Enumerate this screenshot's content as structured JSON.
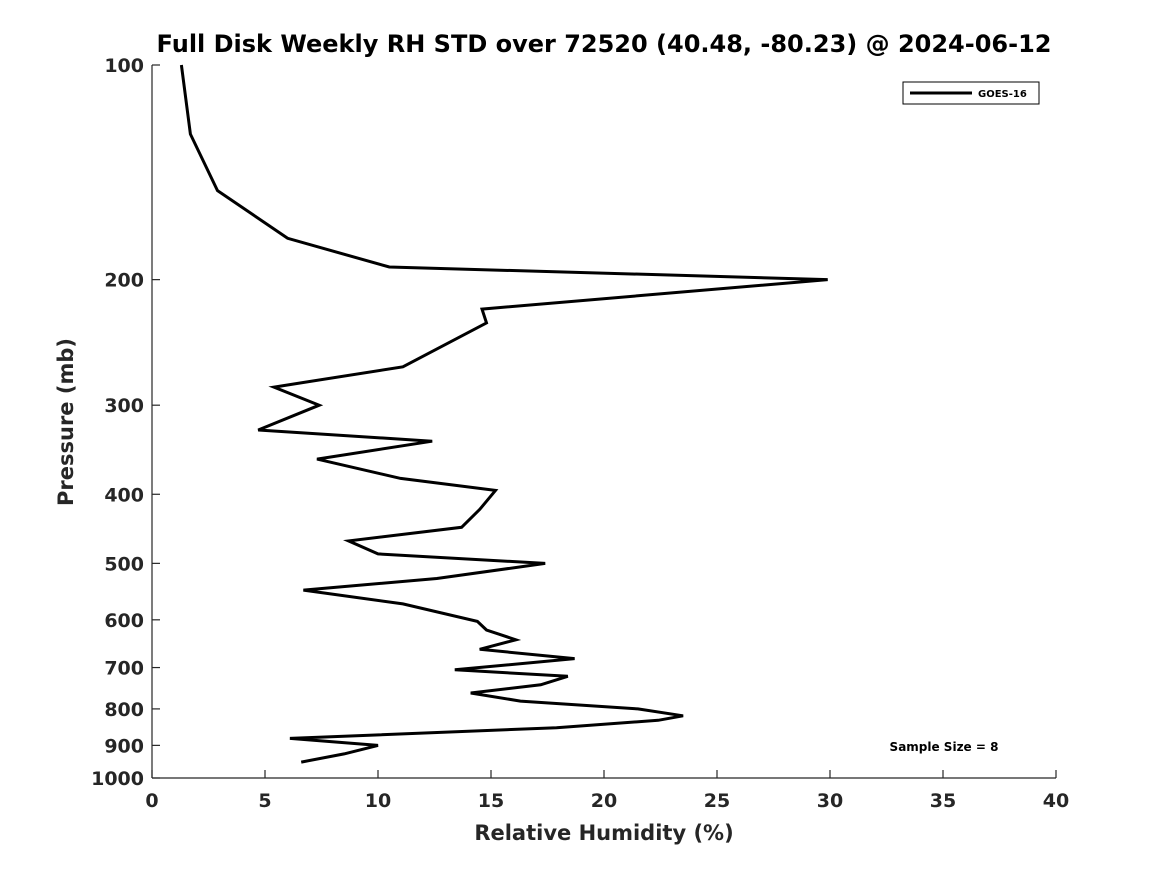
{
  "chart_data": {
    "type": "line",
    "title": "Full Disk Weekly RH STD over 72520 (40.48, -80.23) @ 2024-06-12",
    "xlabel": "Relative Humidity (%)",
    "ylabel": "Pressure (mb)",
    "xlim": [
      0,
      40
    ],
    "ylim": [
      100,
      1000
    ],
    "yscale": "log",
    "yaxis_inverted": true,
    "grid": false,
    "x_ticks": [
      0,
      5,
      10,
      15,
      20,
      25,
      30,
      35,
      40
    ],
    "y_ticks": [
      100,
      200,
      300,
      400,
      500,
      600,
      700,
      800,
      900,
      1000
    ],
    "legend": {
      "position": "top-right",
      "entries": [
        "GOES-16"
      ]
    },
    "annotation": "Sample Size = 8",
    "series": [
      {
        "name": "GOES-16",
        "color": "#000000",
        "x": [
          1.3,
          1.7,
          2.9,
          6.0,
          10.5,
          29.9,
          14.6,
          14.8,
          11.1,
          5.4,
          7.4,
          4.7,
          12.4,
          7.3,
          11.0,
          15.2,
          14.5,
          13.7,
          8.7,
          10.0,
          17.4,
          12.6,
          6.7,
          11.1,
          14.4,
          14.8,
          16.1,
          14.5,
          18.7,
          13.4,
          18.4,
          17.2,
          14.1,
          16.3,
          21.5,
          23.5,
          22.4,
          17.9,
          6.1,
          10.0,
          8.5,
          6.6
        ],
        "y": [
          100,
          125,
          150,
          175,
          192,
          200,
          220,
          230,
          265,
          283,
          300,
          325,
          337,
          357,
          380,
          395,
          420,
          445,
          465,
          485,
          500,
          525,
          545,
          570,
          603,
          620,
          640,
          660,
          680,
          705,
          720,
          740,
          760,
          780,
          800,
          818,
          830,
          850,
          880,
          900,
          925,
          950
        ]
      }
    ]
  }
}
